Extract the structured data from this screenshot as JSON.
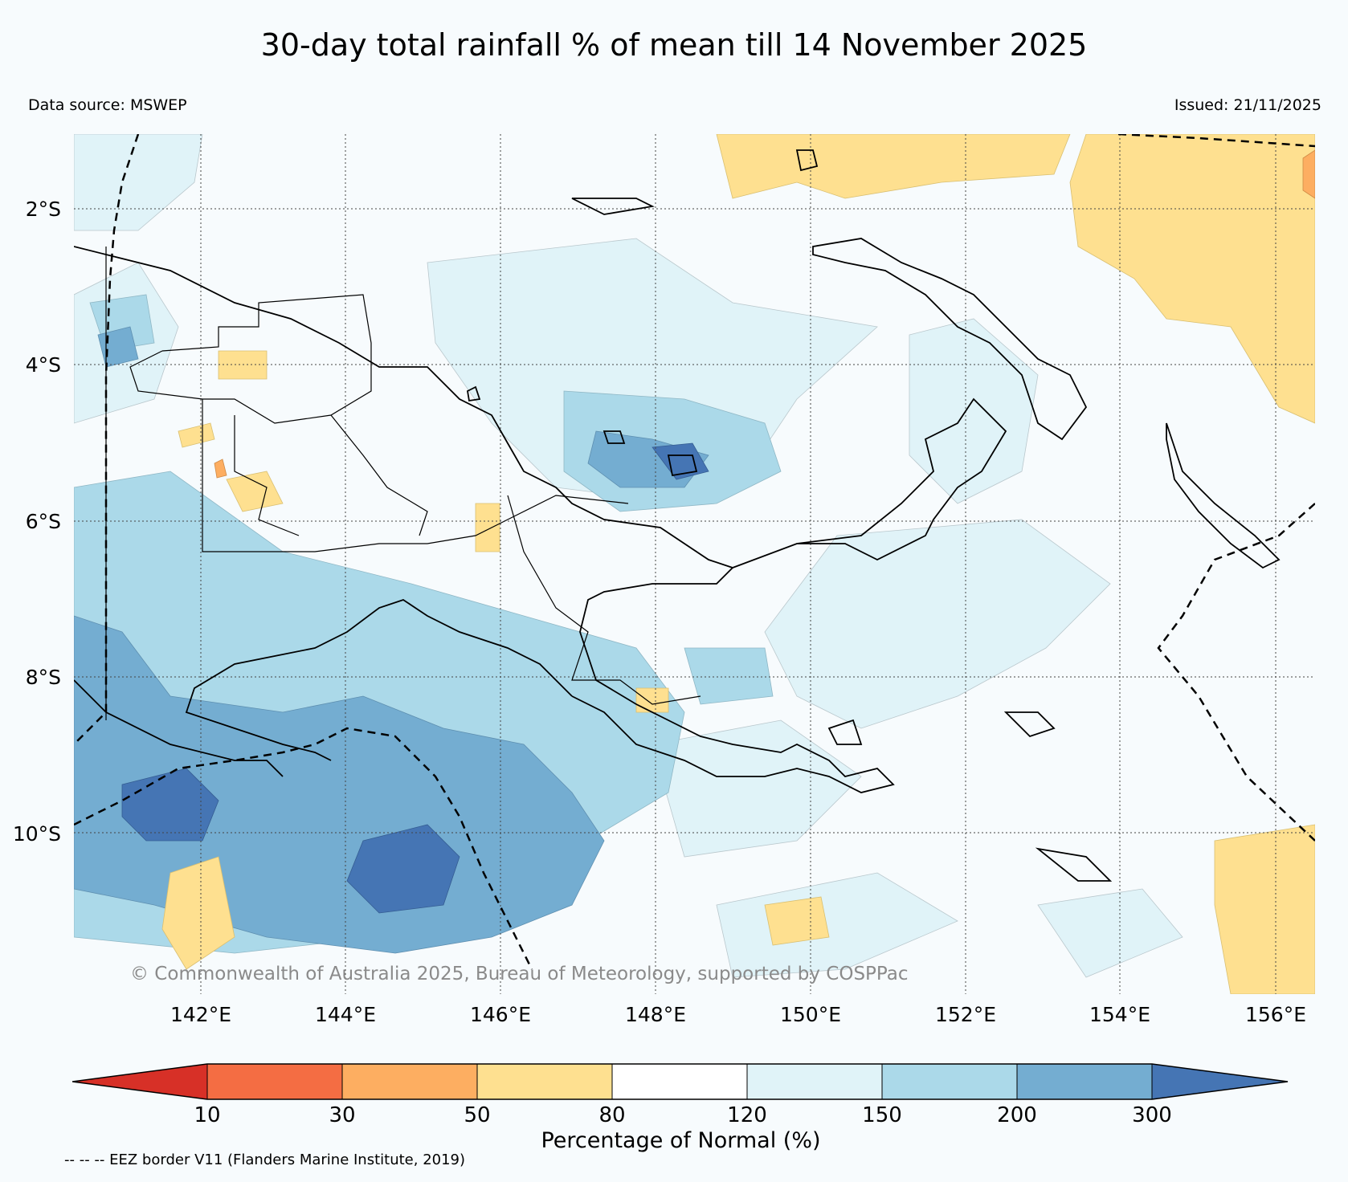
{
  "title": "30-day total rainfall % of mean till 14 November 2025",
  "data_source": "Data source: MSWEP",
  "issued": "Issued: 21/11/2025",
  "copyright": "© Commonwealth of Australia 2025, Bureau of Meteorology, supported by COSPPac",
  "lat_labels": [
    "2°S",
    "4°S",
    "6°S",
    "8°S",
    "10°S"
  ],
  "lon_labels": [
    "142°E",
    "144°E",
    "146°E",
    "148°E",
    "150°E",
    "152°E",
    "154°E",
    "156°E"
  ],
  "colorbar": {
    "title": "Percentage of Normal (%)",
    "ticks": [
      "10",
      "30",
      "50",
      "80",
      "120",
      "150",
      "200",
      "300"
    ],
    "colors": {
      "below_10": "#d73027",
      "10_30": "#f46d43",
      "30_50": "#fdae61",
      "50_80": "#fee090",
      "80_120": "#ffffff",
      "120_150": "#e0f3f8",
      "150_200": "#abd9e9",
      "200_300": "#74add1",
      "above_300": "#4575b4"
    }
  },
  "footnote": "-- -- -- EEZ border V11 (Flanders Marine Institute, 2019)"
}
